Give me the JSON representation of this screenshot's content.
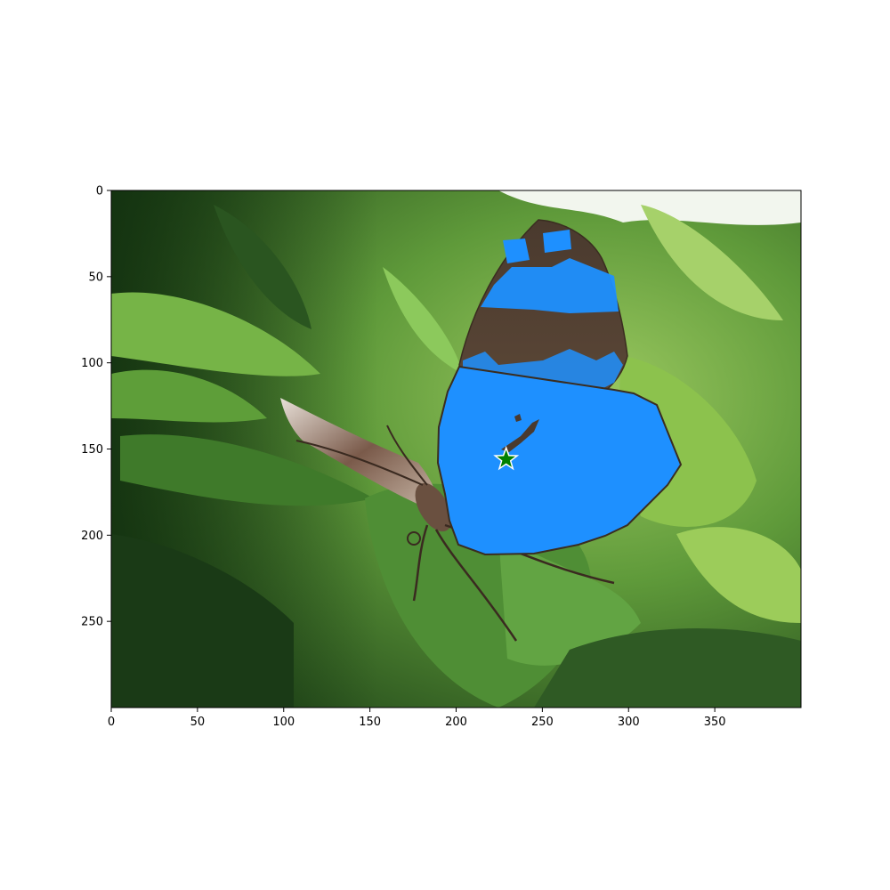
{
  "figure": {
    "image_width": 400,
    "image_height": 300,
    "x_ticks": [
      0,
      50,
      100,
      150,
      200,
      250,
      300,
      350
    ],
    "y_ticks": [
      0,
      50,
      100,
      150,
      200,
      250
    ],
    "mask_color": "#1E90FF",
    "point_marker": {
      "x": 229,
      "y": 156,
      "color": "#008000",
      "shape": "star"
    }
  }
}
